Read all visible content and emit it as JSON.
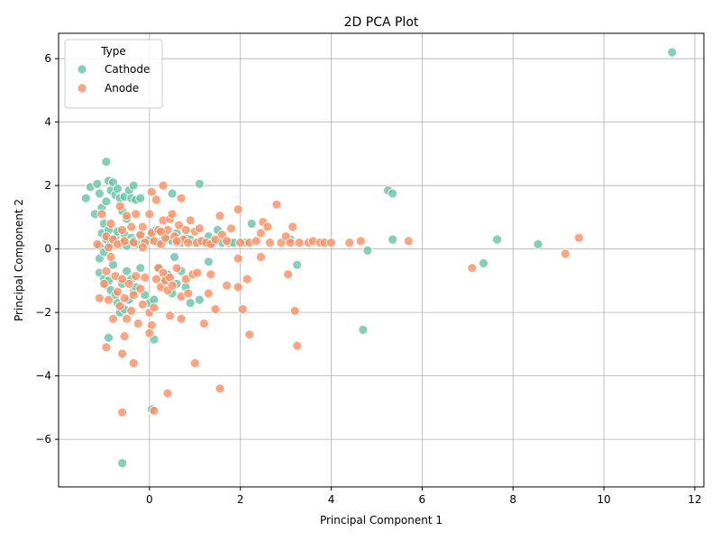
{
  "chart_data": {
    "type": "scatter",
    "title": "2D PCA Plot",
    "xlabel": "Principal Component 1",
    "ylabel": "Principal Component 2",
    "xlim": [
      -2,
      12.2
    ],
    "ylim": [
      -7.5,
      6.8
    ],
    "xticks": [
      0,
      2,
      4,
      6,
      8,
      10,
      12
    ],
    "yticks": [
      -6,
      -4,
      -2,
      0,
      2,
      4,
      6
    ],
    "grid": true,
    "legend": {
      "title": "Type",
      "position": "top-left"
    },
    "series": [
      {
        "name": "Cathode",
        "color": "#66c2a5",
        "points": [
          [
            -1.4,
            1.6
          ],
          [
            -1.3,
            1.95
          ],
          [
            -1.2,
            1.1
          ],
          [
            -1.15,
            2.05
          ],
          [
            -1.1,
            1.75
          ],
          [
            -1.05,
            1.3
          ],
          [
            -1.0,
            0.8
          ],
          [
            -0.95,
            1.5
          ],
          [
            -0.9,
            2.15
          ],
          [
            -0.85,
            1.85
          ],
          [
            -0.8,
            2.1
          ],
          [
            -0.75,
            1.7
          ],
          [
            -0.7,
            1.9
          ],
          [
            -0.65,
            1.6
          ],
          [
            -0.6,
            1.2
          ],
          [
            -0.55,
            1.65
          ],
          [
            -0.5,
            0.95
          ],
          [
            -0.45,
            1.85
          ],
          [
            -0.4,
            1.6
          ],
          [
            -0.35,
            2.0
          ],
          [
            -0.3,
            1.55
          ],
          [
            -0.2,
            1.6
          ],
          [
            -0.95,
            2.75
          ],
          [
            -1.1,
            0.1
          ],
          [
            -1.05,
            0.5
          ],
          [
            -0.95,
            0.3
          ],
          [
            -0.9,
            0.6
          ],
          [
            -0.85,
            0.15
          ],
          [
            -0.75,
            0.35
          ],
          [
            -0.7,
            0.55
          ],
          [
            -0.6,
            0.2
          ],
          [
            -0.55,
            0.45
          ],
          [
            -0.5,
            0.1
          ],
          [
            -0.4,
            0.35
          ],
          [
            -0.35,
            0.25
          ],
          [
            -0.25,
            0.15
          ],
          [
            -0.2,
            0.4
          ],
          [
            -0.1,
            0.2
          ],
          [
            0.0,
            0.3
          ],
          [
            0.05,
            0.55
          ],
          [
            0.15,
            0.6
          ],
          [
            0.2,
            0.2
          ],
          [
            0.3,
            0.45
          ],
          [
            0.4,
            0.3
          ],
          [
            0.5,
            0.25
          ],
          [
            0.6,
            0.5
          ],
          [
            0.7,
            0.2
          ],
          [
            0.8,
            0.35
          ],
          [
            0.9,
            0.3
          ],
          [
            1.0,
            0.2
          ],
          [
            1.1,
            0.25
          ],
          [
            1.2,
            0.2
          ],
          [
            1.3,
            0.4
          ],
          [
            1.4,
            0.2
          ],
          [
            1.5,
            0.6
          ],
          [
            1.6,
            0.2
          ],
          [
            1.75,
            0.2
          ],
          [
            1.85,
            0.2
          ],
          [
            2.1,
            0.2
          ],
          [
            2.25,
            0.8
          ],
          [
            3.1,
            0.3
          ],
          [
            1.1,
            2.05
          ],
          [
            0.5,
            1.75
          ],
          [
            -1.1,
            -0.75
          ],
          [
            -1.0,
            -0.95
          ],
          [
            -0.95,
            -1.15
          ],
          [
            -0.9,
            -1.0
          ],
          [
            -0.85,
            -1.3
          ],
          [
            -0.8,
            -0.5
          ],
          [
            -0.75,
            -1.45
          ],
          [
            -0.7,
            -1.7
          ],
          [
            -0.65,
            -2.0
          ],
          [
            -0.6,
            -1.1
          ],
          [
            -0.55,
            -1.9
          ],
          [
            -0.5,
            -0.7
          ],
          [
            -0.45,
            -1.6
          ],
          [
            -0.4,
            -0.95
          ],
          [
            -0.35,
            -1.35
          ],
          [
            -0.3,
            -1.2
          ],
          [
            -0.2,
            -0.6
          ],
          [
            -0.1,
            -1.45
          ],
          [
            0.0,
            -1.7
          ],
          [
            0.1,
            -1.6
          ],
          [
            0.2,
            -0.6
          ],
          [
            0.3,
            -1.0
          ],
          [
            0.4,
            -0.8
          ],
          [
            0.5,
            -1.4
          ],
          [
            0.6,
            -1.1
          ],
          [
            0.7,
            -0.7
          ],
          [
            0.8,
            -1.2
          ],
          [
            0.9,
            -1.7
          ],
          [
            1.1,
            -1.6
          ],
          [
            0.1,
            -2.85
          ],
          [
            -0.9,
            -2.8
          ],
          [
            0.05,
            -5.05
          ],
          [
            -0.6,
            -6.75
          ],
          [
            3.25,
            -0.5
          ],
          [
            4.7,
            -2.55
          ],
          [
            4.8,
            -0.05
          ],
          [
            5.25,
            1.85
          ],
          [
            5.35,
            1.75
          ],
          [
            5.35,
            0.3
          ],
          [
            7.65,
            0.3
          ],
          [
            7.35,
            -0.45
          ],
          [
            8.55,
            0.15
          ],
          [
            11.5,
            6.2
          ],
          [
            1.3,
            -0.4
          ],
          [
            0.55,
            -0.25
          ],
          [
            -1.1,
            -0.3
          ],
          [
            -1.0,
            -0.1
          ]
        ]
      },
      {
        "name": "Anode",
        "color": "#fc8d62",
        "points": [
          [
            -1.15,
            0.15
          ],
          [
            -1.1,
            -1.55
          ],
          [
            -1.0,
            -1.1
          ],
          [
            -0.95,
            -0.7
          ],
          [
            -0.9,
            -1.6
          ],
          [
            -0.85,
            -0.25
          ],
          [
            -0.8,
            -2.2
          ],
          [
            -0.75,
            -0.85
          ],
          [
            -0.7,
            -1.35
          ],
          [
            -0.65,
            -1.8
          ],
          [
            -0.6,
            -0.95
          ],
          [
            -0.55,
            -1.55
          ],
          [
            -0.5,
            -2.2
          ],
          [
            -0.45,
            -1.1
          ],
          [
            -0.4,
            -1.95
          ],
          [
            -0.35,
            -1.45
          ],
          [
            -0.3,
            -0.85
          ],
          [
            -0.25,
            -2.35
          ],
          [
            -0.2,
            -1.25
          ],
          [
            -0.15,
            -1.75
          ],
          [
            -0.1,
            -0.9
          ],
          [
            0.0,
            -2.0
          ],
          [
            0.05,
            -2.4
          ],
          [
            0.1,
            -1.85
          ],
          [
            0.15,
            -0.95
          ],
          [
            0.2,
            -0.6
          ],
          [
            0.25,
            -1.2
          ],
          [
            0.3,
            -0.75
          ],
          [
            0.35,
            -1.0
          ],
          [
            0.4,
            -1.3
          ],
          [
            0.45,
            -0.9
          ],
          [
            0.5,
            -1.15
          ],
          [
            0.6,
            -0.6
          ],
          [
            0.7,
            -1.5
          ],
          [
            0.8,
            -0.95
          ],
          [
            0.85,
            -1.4
          ],
          [
            0.95,
            -0.8
          ],
          [
            1.05,
            -0.75
          ],
          [
            1.2,
            -2.35
          ],
          [
            1.3,
            -1.4
          ],
          [
            1.35,
            -0.8
          ],
          [
            1.45,
            -1.9
          ],
          [
            1.7,
            -1.15
          ],
          [
            1.95,
            -1.2
          ],
          [
            2.05,
            -1.9
          ],
          [
            2.15,
            -0.95
          ],
          [
            2.2,
            -2.7
          ],
          [
            2.45,
            -0.25
          ],
          [
            3.05,
            -0.8
          ],
          [
            3.2,
            -1.95
          ],
          [
            3.25,
            -3.05
          ],
          [
            -0.95,
            -3.1
          ],
          [
            -0.6,
            -3.3
          ],
          [
            -0.55,
            -2.75
          ],
          [
            -0.35,
            -3.6
          ],
          [
            0.0,
            -2.65
          ],
          [
            0.45,
            -2.1
          ],
          [
            0.7,
            -2.2
          ],
          [
            1.0,
            -3.6
          ],
          [
            0.4,
            -4.55
          ],
          [
            1.55,
            -4.4
          ],
          [
            -0.6,
            -5.15
          ],
          [
            0.1,
            -5.1
          ],
          [
            -1.05,
            1.1
          ],
          [
            -0.95,
            0.4
          ],
          [
            -0.9,
            0.05
          ],
          [
            -0.85,
            0.8
          ],
          [
            -0.8,
            0.3
          ],
          [
            -0.7,
            0.15
          ],
          [
            -0.65,
            1.35
          ],
          [
            -0.6,
            0.6
          ],
          [
            -0.55,
            0.25
          ],
          [
            -0.5,
            1.05
          ],
          [
            -0.4,
            0.7
          ],
          [
            -0.35,
            0.2
          ],
          [
            -0.3,
            1.1
          ],
          [
            -0.2,
            0.45
          ],
          [
            -0.15,
            0.7
          ],
          [
            -0.1,
            0.2
          ],
          [
            0.0,
            1.1
          ],
          [
            0.05,
            0.5
          ],
          [
            0.1,
            0.25
          ],
          [
            0.15,
            1.55
          ],
          [
            0.2,
            0.6
          ],
          [
            0.25,
            0.15
          ],
          [
            0.3,
            0.9
          ],
          [
            0.35,
            0.35
          ],
          [
            0.4,
            0.6
          ],
          [
            0.45,
            0.95
          ],
          [
            0.5,
            1.1
          ],
          [
            0.55,
            0.4
          ],
          [
            0.6,
            0.2
          ],
          [
            0.65,
            0.75
          ],
          [
            0.7,
            1.6
          ],
          [
            0.75,
            0.3
          ],
          [
            0.8,
            0.6
          ],
          [
            0.85,
            0.2
          ],
          [
            0.9,
            0.9
          ],
          [
            1.0,
            0.55
          ],
          [
            1.05,
            0.2
          ],
          [
            1.15,
            0.25
          ],
          [
            1.25,
            0.2
          ],
          [
            1.35,
            0.15
          ],
          [
            1.45,
            0.3
          ],
          [
            1.55,
            1.05
          ],
          [
            1.6,
            0.45
          ],
          [
            1.7,
            0.25
          ],
          [
            1.8,
            0.65
          ],
          [
            1.95,
            1.25
          ],
          [
            2.0,
            0.2
          ],
          [
            2.2,
            0.2
          ],
          [
            2.35,
            0.25
          ],
          [
            2.5,
            0.85
          ],
          [
            2.6,
            0.7
          ],
          [
            2.65,
            0.2
          ],
          [
            2.8,
            1.4
          ],
          [
            2.9,
            0.2
          ],
          [
            3.0,
            0.4
          ],
          [
            3.1,
            0.2
          ],
          [
            3.15,
            0.7
          ],
          [
            3.3,
            0.2
          ],
          [
            3.5,
            0.2
          ],
          [
            3.6,
            0.25
          ],
          [
            3.75,
            0.2
          ],
          [
            3.85,
            0.2
          ],
          [
            4.0,
            0.2
          ],
          [
            4.4,
            0.2
          ],
          [
            4.65,
            0.25
          ],
          [
            5.7,
            0.25
          ],
          [
            7.1,
            -0.6
          ],
          [
            9.15,
            -0.15
          ],
          [
            9.45,
            0.35
          ],
          [
            0.05,
            1.8
          ],
          [
            0.3,
            2.0
          ],
          [
            -0.15,
            0.05
          ],
          [
            1.95,
            -0.3
          ],
          [
            2.45,
            0.5
          ],
          [
            0.6,
            0.25
          ],
          [
            1.1,
            0.65
          ],
          [
            0.25,
            0.55
          ]
        ]
      }
    ]
  }
}
